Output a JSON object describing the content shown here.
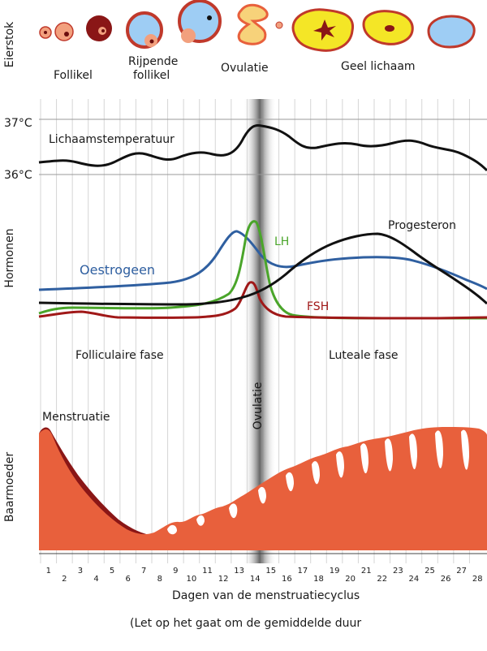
{
  "section_labels": {
    "ovary": "Eierstok",
    "hormones": "Hormonen",
    "uterus": "Baarmoeder"
  },
  "ovary_stages": {
    "follicle": "Follikel",
    "ripening_follicle_line1": "Rijpende",
    "ripening_follicle_line2": "follikel",
    "ovulation": "Ovulatie",
    "corpus_luteum": "Geel lichaam"
  },
  "temperature": {
    "label": "Lichaamstemperatuur",
    "tick_high": "37°C",
    "tick_low": "36°C"
  },
  "hormones": {
    "estrogen": "Oestrogeen",
    "lh": "LH",
    "fsh": "FSH",
    "progesterone": "Progesteron"
  },
  "phases": {
    "follicular": "Follicul­aire fase",
    "luteal": "Luteale fase",
    "ovulation_band": "Ovulatie"
  },
  "uterus": {
    "menstruation": "Menstruatie"
  },
  "axis": {
    "title": "Dagen van de menstruatiecyclus",
    "days": [
      "1",
      "2",
      "3",
      "4",
      "5",
      "6",
      "7",
      "8",
      "9",
      "10",
      "11",
      "12",
      "13",
      "14",
      "15",
      "16",
      "17",
      "18",
      "19",
      "20",
      "21",
      "22",
      "23",
      "24",
      "25",
      "26",
      "27",
      "28"
    ],
    "note": "(Let op het gaat om de gemiddelde duur"
  },
  "colors": {
    "estrogen": "#2f5fa0",
    "lh": "#4aa52a",
    "fsh": "#a01818",
    "progesterone": "#111111",
    "temperature": "#111111",
    "endometrium": "#e8603c",
    "endometrium_dark": "#8a1616",
    "corpus_luteum": "#f4e626",
    "follicle_fluid": "#9ecdf4"
  }
}
